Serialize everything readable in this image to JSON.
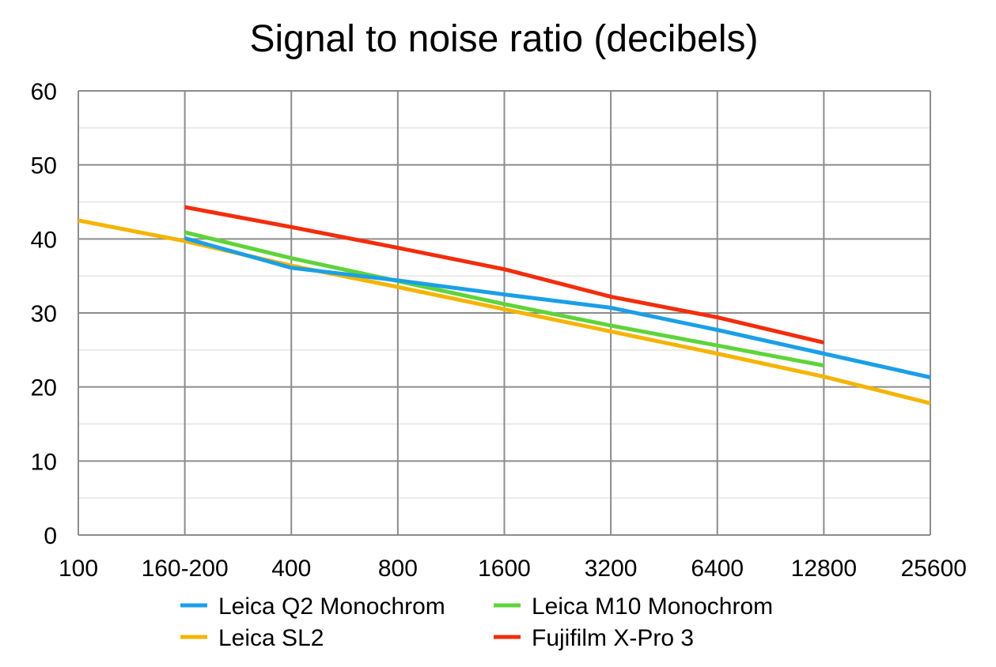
{
  "chart_data": {
    "type": "line",
    "title": "Signal to noise ratio (decibels)",
    "xlabel": "",
    "ylabel": "",
    "categories": [
      "100",
      "160-200",
      "400",
      "800",
      "1600",
      "3200",
      "6400",
      "12800",
      "25600"
    ],
    "ylim": [
      0,
      60
    ],
    "yticks": [
      0,
      10,
      20,
      30,
      40,
      50,
      60
    ],
    "grid": true,
    "legend_position": "bottom",
    "series": [
      {
        "name": "Leica Q2 Monochrom",
        "color": "#1a9fe8",
        "values": [
          null,
          40.1,
          36.1,
          34.4,
          32.5,
          30.7,
          27.7,
          24.5,
          21.3
        ]
      },
      {
        "name": "Leica M10 Monochrom",
        "color": "#5ed43a",
        "values": [
          null,
          40.9,
          37.4,
          34.3,
          31.2,
          28.3,
          25.6,
          22.9,
          null
        ]
      },
      {
        "name": "Leica SL2",
        "color": "#f5b400",
        "values": [
          42.5,
          39.7,
          36.4,
          33.5,
          30.5,
          27.5,
          24.5,
          21.4,
          17.8
        ]
      },
      {
        "name": "Fujifilm X-Pro 3",
        "color": "#f32c0c",
        "values": [
          null,
          44.3,
          41.6,
          38.8,
          35.9,
          32.2,
          29.4,
          26.0,
          null
        ]
      }
    ]
  }
}
